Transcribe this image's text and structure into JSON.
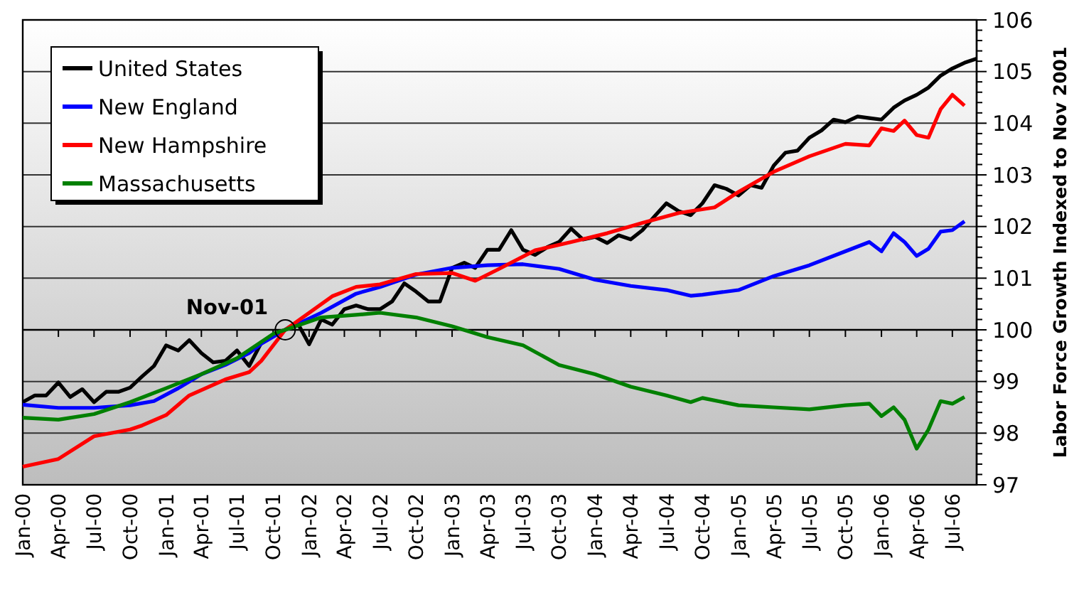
{
  "chart_data": {
    "type": "line",
    "ylabel": "Labor Force Growth Indexed to Nov 2001",
    "xlim": [
      "2000-01",
      "2006-09"
    ],
    "ylim": [
      97,
      106
    ],
    "yticks": [
      97,
      98,
      99,
      100,
      101,
      102,
      103,
      104,
      105,
      106
    ],
    "xticks": [
      {
        "value": "2000-01",
        "label": "Jan-00"
      },
      {
        "value": "2000-04",
        "label": "Apr-00"
      },
      {
        "value": "2000-07",
        "label": "Jul-00"
      },
      {
        "value": "2000-10",
        "label": "Oct-00"
      },
      {
        "value": "2001-01",
        "label": "Jan-01"
      },
      {
        "value": "2001-04",
        "label": "Apr-01"
      },
      {
        "value": "2001-07",
        "label": "Jul-01"
      },
      {
        "value": "2001-10",
        "label": "Oct-01"
      },
      {
        "value": "2002-01",
        "label": "Jan-02"
      },
      {
        "value": "2002-04",
        "label": "Apr-02"
      },
      {
        "value": "2002-07",
        "label": "Jul-02"
      },
      {
        "value": "2002-10",
        "label": "Oct-02"
      },
      {
        "value": "2003-01",
        "label": "Jan-03"
      },
      {
        "value": "2003-04",
        "label": "Apr-03"
      },
      {
        "value": "2003-07",
        "label": "Jul-03"
      },
      {
        "value": "2003-10",
        "label": "Oct-03"
      },
      {
        "value": "2004-01",
        "label": "Jan-04"
      },
      {
        "value": "2004-04",
        "label": "Apr-04"
      },
      {
        "value": "2004-07",
        "label": "Jul-04"
      },
      {
        "value": "2004-10",
        "label": "Oct-04"
      },
      {
        "value": "2005-01",
        "label": "Jan-05"
      },
      {
        "value": "2005-04",
        "label": "Apr-05"
      },
      {
        "value": "2005-07",
        "label": "Jul-05"
      },
      {
        "value": "2005-10",
        "label": "Oct-05"
      },
      {
        "value": "2006-01",
        "label": "Jan-06"
      },
      {
        "value": "2006-04",
        "label": "Apr-06"
      },
      {
        "value": "2006-07",
        "label": "Jul-06"
      }
    ],
    "grid": "y",
    "legend": "top left",
    "marker": "none",
    "line_style": "solid",
    "annotations": [
      {
        "text": "Nov-01",
        "x": "2001-11",
        "y": 100
      }
    ],
    "ref_lines": [
      {
        "axis": "y",
        "value": 100,
        "color": "#000000"
      }
    ],
    "series": [
      {
        "name": "United States",
        "color": "#000000",
        "x": [
          "2000-01",
          "2000-02",
          "2000-03",
          "2000-04",
          "2000-05",
          "2000-06",
          "2000-07",
          "2000-08",
          "2000-09",
          "2000-10",
          "2000-11",
          "2000-12",
          "2001-01",
          "2001-02",
          "2001-03",
          "2001-04",
          "2001-05",
          "2001-06",
          "2001-07",
          "2001-08",
          "2001-09",
          "2001-10",
          "2001-11",
          "2001-12",
          "2002-01",
          "2002-02",
          "2002-03",
          "2002-04",
          "2002-05",
          "2002-06",
          "2002-07",
          "2002-08",
          "2002-09",
          "2002-10",
          "2002-11",
          "2002-12",
          "2003-01",
          "2003-02",
          "2003-03",
          "2003-04",
          "2003-05",
          "2003-06",
          "2003-07",
          "2003-08",
          "2003-09",
          "2003-10",
          "2003-11",
          "2003-12",
          "2004-01",
          "2004-02",
          "2004-03",
          "2004-04",
          "2004-05",
          "2004-06",
          "2004-07",
          "2004-08",
          "2004-09",
          "2004-10",
          "2004-11",
          "2004-12",
          "2005-01",
          "2005-02",
          "2005-03",
          "2005-04",
          "2005-05",
          "2005-06",
          "2005-07",
          "2005-08",
          "2005-09",
          "2005-10",
          "2005-11",
          "2005-12",
          "2006-01",
          "2006-02",
          "2006-03",
          "2006-04",
          "2006-05",
          "2006-06",
          "2006-07",
          "2006-08",
          "2006-09"
        ],
        "values": [
          98.6,
          98.73,
          98.73,
          98.98,
          98.7,
          98.85,
          98.6,
          98.8,
          98.8,
          98.88,
          99.1,
          99.3,
          99.7,
          99.6,
          99.8,
          99.55,
          99.37,
          99.4,
          99.6,
          99.3,
          99.75,
          99.9,
          100,
          100.15,
          99.72,
          100.2,
          100.1,
          100.4,
          100.47,
          100.4,
          100.4,
          100.55,
          100.9,
          100.74,
          100.55,
          100.55,
          101.2,
          101.3,
          101.2,
          101.55,
          101.55,
          101.93,
          101.55,
          101.45,
          101.6,
          101.7,
          101.96,
          101.75,
          101.8,
          101.68,
          101.83,
          101.75,
          101.93,
          102.2,
          102.45,
          102.3,
          102.22,
          102.45,
          102.8,
          102.73,
          102.6,
          102.8,
          102.75,
          103.18,
          103.43,
          103.47,
          103.72,
          103.86,
          104.07,
          104.02,
          104.13,
          104.1,
          104.07,
          104.3,
          104.44,
          104.55,
          104.69,
          104.92,
          105.06,
          105.17,
          105.25
        ]
      },
      {
        "name": "New England",
        "color": "#0000ff",
        "x": [
          "2000-01",
          "2000-04",
          "2000-07",
          "2000-10",
          "2000-12",
          "2001-02",
          "2001-04",
          "2001-06",
          "2001-08",
          "2001-09",
          "2001-11",
          "2002-02",
          "2002-05",
          "2002-07",
          "2002-10",
          "2003-01",
          "2003-04",
          "2003-07",
          "2003-10",
          "2004-01",
          "2004-04",
          "2004-07",
          "2004-09",
          "2004-10",
          "2005-01",
          "2005-04",
          "2005-07",
          "2005-10",
          "2005-12",
          "2006-01",
          "2006-02",
          "2006-03",
          "2006-04",
          "2006-05",
          "2006-06",
          "2006-07",
          "2006-08"
        ],
        "values": [
          98.55,
          98.49,
          98.49,
          98.54,
          98.62,
          98.87,
          99.14,
          99.32,
          99.55,
          99.73,
          100,
          100.33,
          100.7,
          100.83,
          101.07,
          101.2,
          101.25,
          101.27,
          101.18,
          100.97,
          100.85,
          100.77,
          100.66,
          100.68,
          100.77,
          101.04,
          101.25,
          101.52,
          101.7,
          101.52,
          101.87,
          101.7,
          101.43,
          101.57,
          101.9,
          101.93,
          102.1
        ]
      },
      {
        "name": "New Hampshire",
        "color": "#ff0000",
        "x": [
          "2000-01",
          "2000-04",
          "2000-07",
          "2000-10",
          "2000-11",
          "2001-01",
          "2001-03",
          "2001-06",
          "2001-08",
          "2001-09",
          "2001-11",
          "2002-01",
          "2002-03",
          "2002-05",
          "2002-07",
          "2002-10",
          "2003-01",
          "2003-03",
          "2003-05",
          "2003-08",
          "2003-11",
          "2004-02",
          "2004-05",
          "2004-08",
          "2004-11",
          "2005-01",
          "2005-04",
          "2005-07",
          "2005-10",
          "2005-12",
          "2006-01",
          "2006-02",
          "2006-03",
          "2006-04",
          "2006-05",
          "2006-06",
          "2006-07",
          "2006-08"
        ],
        "values": [
          97.35,
          97.5,
          97.94,
          98.07,
          98.15,
          98.35,
          98.73,
          99.04,
          99.18,
          99.4,
          100,
          100.33,
          100.65,
          100.83,
          100.88,
          101.08,
          101.1,
          100.95,
          101.18,
          101.54,
          101.7,
          101.87,
          102.07,
          102.26,
          102.37,
          102.67,
          103.06,
          103.36,
          103.6,
          103.57,
          103.9,
          103.85,
          104.05,
          103.77,
          103.72,
          104.27,
          104.55,
          104.34
        ]
      },
      {
        "name": "Massachusetts",
        "color": "#008000",
        "x": [
          "2000-01",
          "2000-04",
          "2000-07",
          "2000-10",
          "2001-01",
          "2001-04",
          "2001-07",
          "2001-10",
          "2001-11",
          "2002-02",
          "2002-05",
          "2002-07",
          "2002-10",
          "2003-01",
          "2003-04",
          "2003-07",
          "2003-10",
          "2004-01",
          "2004-04",
          "2004-07",
          "2004-09",
          "2004-10",
          "2005-01",
          "2005-04",
          "2005-07",
          "2005-10",
          "2005-12",
          "2006-01",
          "2006-02",
          "2006-03",
          "2006-04",
          "2006-05",
          "2006-06",
          "2006-07",
          "2006-08"
        ],
        "values": [
          98.3,
          98.26,
          98.37,
          98.6,
          98.87,
          99.14,
          99.45,
          99.92,
          100,
          100.24,
          100.29,
          100.33,
          100.24,
          100.07,
          99.86,
          99.7,
          99.32,
          99.14,
          98.9,
          98.73,
          98.6,
          98.68,
          98.54,
          98.5,
          98.46,
          98.54,
          98.57,
          98.33,
          98.5,
          98.26,
          97.7,
          98.07,
          98.62,
          98.57,
          98.7
        ]
      }
    ]
  }
}
